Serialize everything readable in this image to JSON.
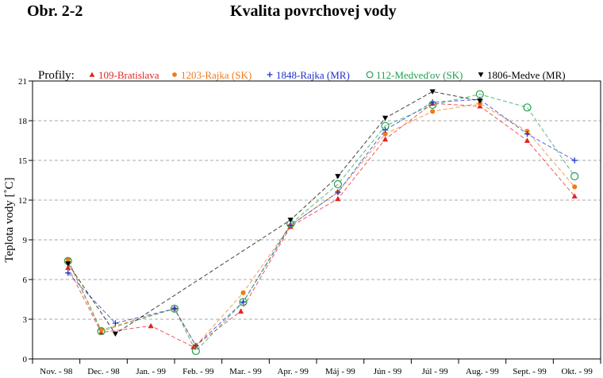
{
  "header": {
    "figure_number": "Obr. 2-2",
    "title": "Kvalita povrchovej vody"
  },
  "chart_data": {
    "type": "line",
    "title": "Kvalita povrchovej vody",
    "legend_title": "Profily:",
    "legend_position": "top",
    "ylabel": "Teplota vody [˚C]",
    "xlabel": "",
    "ylim": [
      0,
      21
    ],
    "yticks": [
      0,
      3,
      6,
      9,
      12,
      15,
      18,
      21
    ],
    "grid": "horizontal dashed",
    "x_categories": [
      "Nov. - 98",
      "Dec. - 98",
      "Jan. - 99",
      "Feb. - 99",
      "Mar. - 99",
      "Apr. - 99",
      "Máj - 99",
      "Jún - 99",
      "Júl - 99",
      "Aug. - 99",
      "Sept. - 99",
      "Okt. - 99"
    ],
    "series": [
      {
        "name": "109-Bratislava",
        "marker": "triangle-up",
        "color": "#e0261e",
        "points": [
          [
            0.25,
            6.9
          ],
          [
            0.95,
            2.0
          ],
          [
            2.0,
            2.5
          ],
          [
            2.9,
            0.9
          ],
          [
            3.9,
            3.6
          ],
          [
            4.95,
            10.0
          ],
          [
            5.95,
            12.1
          ],
          [
            6.95,
            16.6
          ],
          [
            7.95,
            19.3
          ],
          [
            8.95,
            19.1
          ],
          [
            9.95,
            16.5
          ],
          [
            10.95,
            12.3
          ]
        ]
      },
      {
        "name": "1203-Rajka (SK)",
        "marker": "circle-filled",
        "color": "#f07a1a",
        "points": [
          [
            0.25,
            7.5
          ],
          [
            0.95,
            2.2
          ],
          [
            2.5,
            3.8
          ],
          [
            2.95,
            1.0
          ],
          [
            3.95,
            5.0
          ],
          [
            4.95,
            10.1
          ],
          [
            5.95,
            12.6
          ],
          [
            6.95,
            17.0
          ],
          [
            7.95,
            18.7
          ],
          [
            8.95,
            19.3
          ],
          [
            9.95,
            17.2
          ],
          [
            10.95,
            13.0
          ]
        ]
      },
      {
        "name": "1848-Rajka (MR)",
        "marker": "plus",
        "color": "#2030c8",
        "points": [
          [
            0.25,
            6.5
          ],
          [
            1.25,
            2.7
          ],
          [
            2.5,
            3.8
          ],
          [
            2.95,
            1.0
          ],
          [
            3.95,
            4.3
          ],
          [
            4.95,
            10.1
          ],
          [
            5.95,
            12.6
          ],
          [
            6.95,
            17.3
          ],
          [
            7.95,
            19.4
          ],
          [
            8.95,
            19.6
          ],
          [
            9.95,
            17.0
          ],
          [
            10.95,
            15.0
          ]
        ]
      },
      {
        "name": "112-Medveďov (SK)",
        "marker": "circle-open",
        "color": "#22a050",
        "points": [
          [
            0.25,
            7.4
          ],
          [
            0.95,
            2.1
          ],
          [
            2.5,
            3.8
          ],
          [
            2.95,
            0.6
          ],
          [
            3.95,
            4.3
          ],
          [
            4.95,
            10.2
          ],
          [
            5.95,
            13.2
          ],
          [
            6.95,
            17.6
          ],
          [
            7.95,
            19.2
          ],
          [
            8.95,
            20.0
          ],
          [
            9.95,
            19.0
          ],
          [
            10.95,
            13.8
          ]
        ]
      },
      {
        "name": "1806-Medve (MR)",
        "marker": "triangle-down",
        "color": "#000000",
        "points": [
          [
            0.25,
            7.2
          ],
          [
            1.25,
            1.9
          ],
          [
            4.95,
            10.5
          ],
          [
            5.95,
            13.8
          ],
          [
            6.95,
            18.2
          ],
          [
            7.95,
            20.2
          ],
          [
            8.95,
            19.5
          ]
        ]
      }
    ]
  }
}
